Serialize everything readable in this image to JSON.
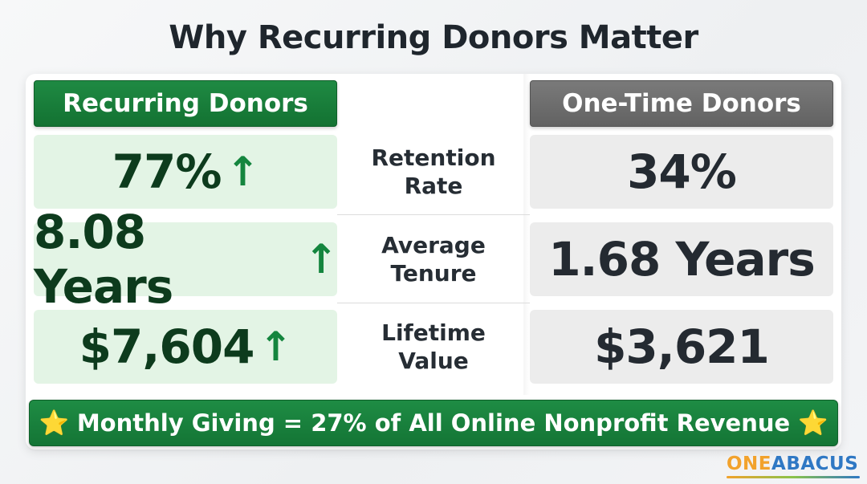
{
  "title": "Why Recurring Donors Matter",
  "headers": {
    "recurring": "Recurring Donors",
    "one_time": "One-Time Donors"
  },
  "rows": [
    {
      "label_line1": "Retention",
      "label_line2": "Rate",
      "recurring": "77%",
      "one_time": "34%"
    },
    {
      "label_line1": "Average",
      "label_line2": "Tenure",
      "recurring": "8.08 Years",
      "one_time": "1.68 Years"
    },
    {
      "label_line1": "Lifetime",
      "label_line2": "Value",
      "recurring": "$7,604",
      "one_time": "$3,621"
    }
  ],
  "arrow_icon": "↑",
  "banner": {
    "star_icon": "⭐",
    "text": "Monthly Giving = 27% of All Online Nonprofit Revenue"
  },
  "logo": {
    "part1": "ONE",
    "part2": "ABACUS"
  },
  "colors": {
    "recurring_accent": "#1b8040",
    "one_time_accent": "#6e6e6e",
    "arrow": "#14853e"
  }
}
